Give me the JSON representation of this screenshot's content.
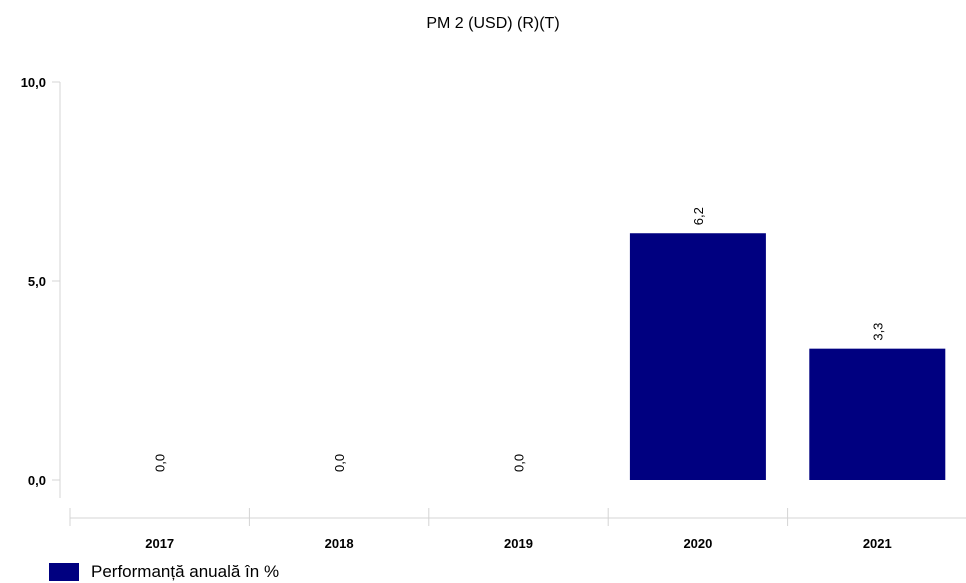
{
  "chart_data": {
    "type": "bar",
    "title": "PM 2 (USD) (R)(T)",
    "categories": [
      "2017",
      "2018",
      "2019",
      "2020",
      "2021"
    ],
    "series": [
      {
        "name": "Performanță anuală în %",
        "values": [
          0.0,
          0.0,
          0.0,
          6.2,
          3.3
        ],
        "data_labels": [
          "0,0",
          "0,0",
          "0,0",
          "6,2",
          "3,3"
        ],
        "color": "#000080"
      }
    ],
    "yticks": [
      "0,0",
      "5,0",
      "10,0"
    ],
    "ylim": [
      0,
      10
    ],
    "grid": false,
    "legend_position": "bottom-left"
  }
}
